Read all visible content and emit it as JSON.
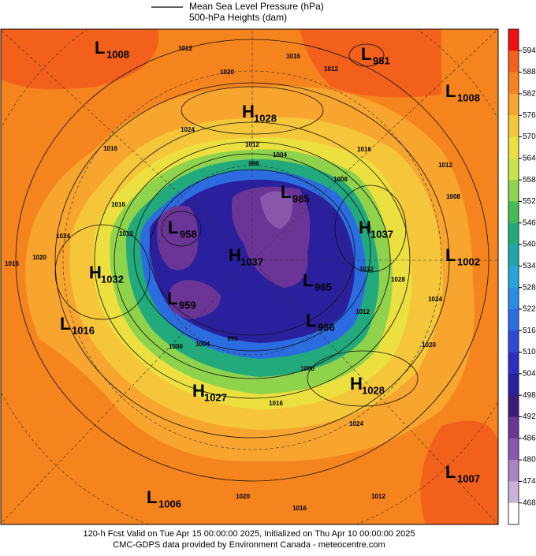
{
  "header": {
    "lines": [
      "Mean Sea Level Pressure (hPa)",
      "500-hPa Heights (dam)"
    ]
  },
  "colorbar": {
    "ticks": [
      594,
      588,
      582,
      576,
      570,
      564,
      558,
      552,
      546,
      540,
      534,
      528,
      522,
      516,
      510,
      504,
      498,
      492,
      486,
      480,
      474,
      468
    ],
    "colors": [
      "#f01010",
      "#f2601c",
      "#f5841e",
      "#f7a52e",
      "#f5c53a",
      "#ece040",
      "#c8e34a",
      "#8fd24c",
      "#45bb55",
      "#22a97c",
      "#1fa7aa",
      "#26a6d8",
      "#2a8de0",
      "#2b6ce0",
      "#2c4ad6",
      "#2b2ec0",
      "#2a1f9c",
      "#3c1a7a",
      "#6a3596",
      "#8957ab",
      "#a884c1",
      "#cab2d9",
      "#ffffff"
    ]
  },
  "centers": [
    {
      "letter": "L",
      "value": 1008
    },
    {
      "letter": "L",
      "value": 981
    },
    {
      "letter": "L",
      "value": 1008
    },
    {
      "letter": "H",
      "value": 1028
    },
    {
      "letter": "L",
      "value": 985
    },
    {
      "letter": "H",
      "value": 1037
    },
    {
      "letter": "L",
      "value": 958
    },
    {
      "letter": "H",
      "value": 1037
    },
    {
      "letter": "L",
      "value": 1002
    },
    {
      "letter": "H",
      "value": 1032
    },
    {
      "letter": "L",
      "value": 965
    },
    {
      "letter": "L",
      "value": 959
    },
    {
      "letter": "L",
      "value": 966
    },
    {
      "letter": "L",
      "value": 1016
    },
    {
      "letter": "H",
      "value": 1028
    },
    {
      "letter": "H",
      "value": 1027
    },
    {
      "letter": "L",
      "value": 1007
    },
    {
      "letter": "L",
      "value": 1006
    }
  ],
  "contour_labels": [
    1012,
    1016,
    1012,
    1020,
    1024,
    1012,
    1004,
    996,
    1016,
    1016,
    1008,
    1012,
    1008,
    1016,
    1012,
    1024,
    1020,
    1016,
    1032,
    1028,
    1024,
    1020,
    1012,
    1000,
    1004,
    996,
    1000,
    1016,
    1024,
    1020,
    1016,
    1012
  ],
  "footer": [
    "120-h Fcst Valid on Tue Apr 15 00:00:00 2025, Initialized on Thu Apr 10 00:00:00 2025",
    "CMC-GDPS data provided by Environment Canada - meteocentre.com"
  ]
}
